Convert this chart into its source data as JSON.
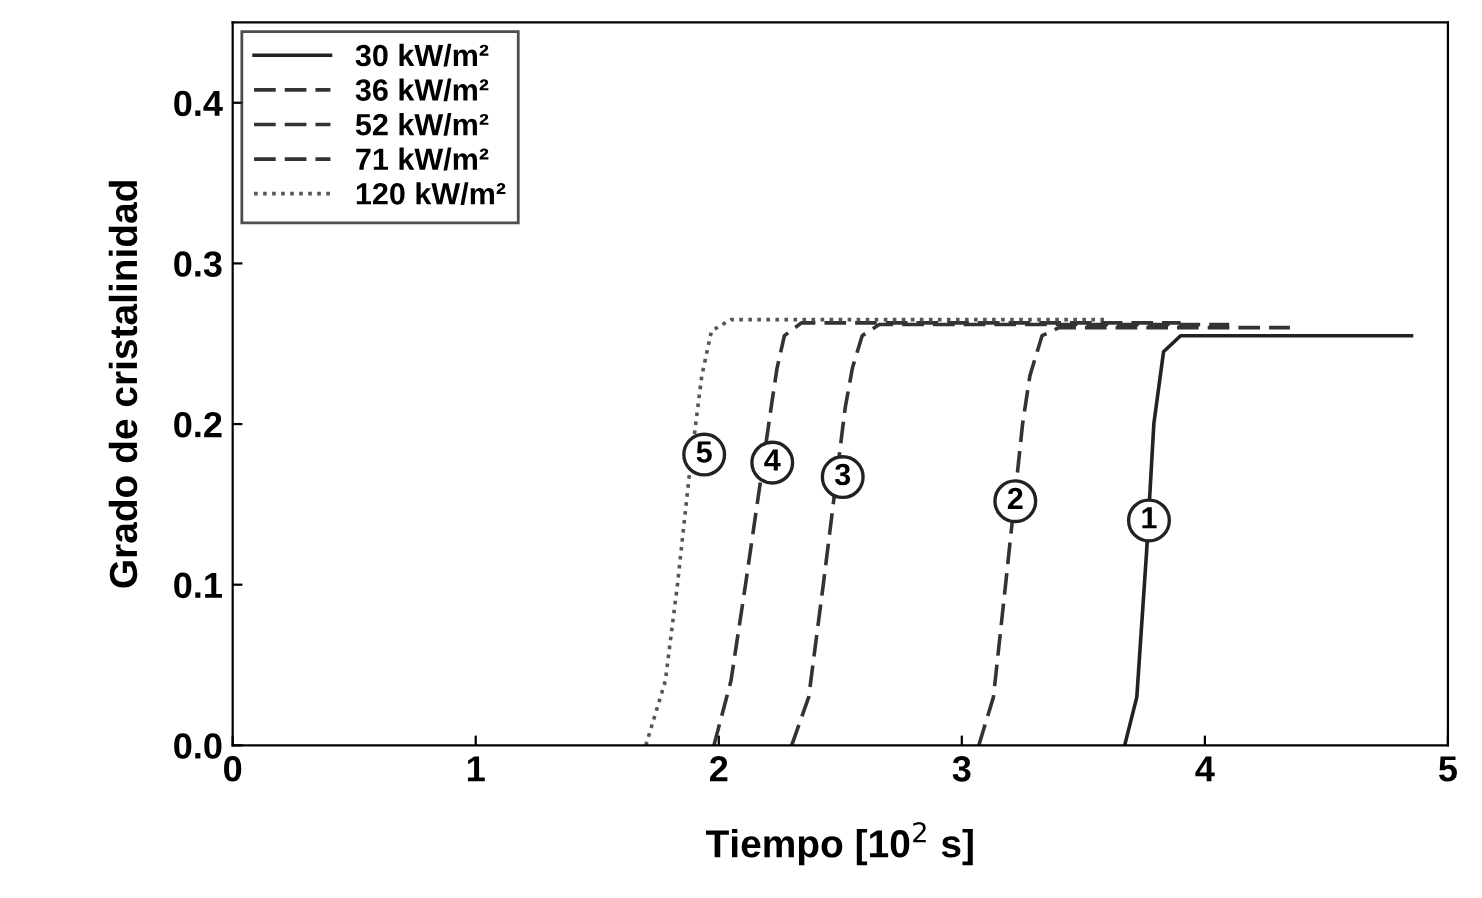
{
  "chart_data": {
    "type": "line",
    "xlabel": "Tiempo [10$^{2}$ s]",
    "ylabel": "Grado de cristalinidad",
    "xlim": [
      0,
      5
    ],
    "ylim": [
      0,
      0.45
    ],
    "xticks": [
      0,
      1,
      2,
      3,
      4,
      5
    ],
    "yticks": [
      {
        "value": 0,
        "label": "0.0"
      },
      0.1,
      0.2,
      0.3,
      0.4
    ],
    "grid": false,
    "legend": "top left",
    "marker": "none",
    "series": [
      {
        "name": "30 kW/m²",
        "color": "#222222",
        "line_style": "solid",
        "x": [
          3.67,
          3.72,
          3.76,
          3.79,
          3.83,
          3.9,
          4.85
        ],
        "values": [
          0,
          0.03,
          0.12,
          0.2,
          0.245,
          0.255,
          0.255
        ]
      },
      {
        "name": "36 kW/m²",
        "color": "#333333",
        "line_style": "dashed",
        "x": [
          3.07,
          3.13,
          3.18,
          3.25,
          3.28,
          3.33,
          3.4,
          4.35
        ],
        "values": [
          0,
          0.03,
          0.1,
          0.2,
          0.23,
          0.255,
          0.26,
          0.26
        ]
      },
      {
        "name": "52 kW/m²",
        "color": "#333333",
        "line_style": "dashed",
        "x": [
          2.3,
          2.37,
          2.43,
          2.52,
          2.55,
          2.59,
          2.66,
          4.1
        ],
        "values": [
          0,
          0.03,
          0.1,
          0.21,
          0.235,
          0.255,
          0.262,
          0.262
        ]
      },
      {
        "name": "71 kW/m²",
        "color": "#333333",
        "line_style": "dashed",
        "x": [
          1.98,
          2.05,
          2.11,
          2.22,
          2.24,
          2.27,
          2.34,
          3.9
        ],
        "values": [
          0,
          0.04,
          0.1,
          0.215,
          0.235,
          0.255,
          0.263,
          0.263
        ]
      },
      {
        "name": "120 kW/m²",
        "color": "#555555",
        "line_style": "dotted",
        "x": [
          1.7,
          1.78,
          1.83,
          1.88,
          1.93,
          1.97,
          2.05,
          3.6
        ],
        "values": [
          0,
          0.04,
          0.1,
          0.17,
          0.23,
          0.258,
          0.265,
          0.265
        ]
      }
    ],
    "annotations": [
      {
        "text": "1",
        "x": 3.77,
        "y": 0.14
      },
      {
        "text": "2",
        "x": 3.22,
        "y": 0.152
      },
      {
        "text": "3",
        "x": 2.51,
        "y": 0.167
      },
      {
        "text": "4",
        "x": 2.22,
        "y": 0.176
      },
      {
        "text": "5",
        "x": 1.94,
        "y": 0.181
      }
    ]
  }
}
